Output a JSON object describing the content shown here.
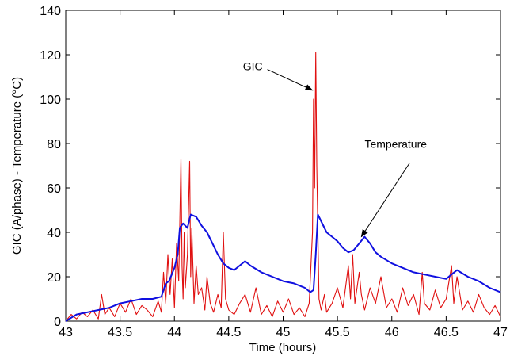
{
  "chart_data": {
    "type": "line",
    "xlabel": "Time (hours)",
    "ylabel": "GIC (A/phase) - Temperature (°C)",
    "xlim": [
      43,
      47
    ],
    "ylim": [
      0,
      140
    ],
    "xticks": [
      "43",
      "43.5",
      "44",
      "44.5",
      "45",
      "45.5",
      "46",
      "46.5",
      "47"
    ],
    "yticks": [
      "0",
      "20",
      "40",
      "60",
      "80",
      "100",
      "120",
      "140"
    ],
    "grid": false,
    "legend": "none",
    "series": [
      {
        "color": "#1010e0",
        "x": [
          43.0,
          43.1,
          43.2,
          43.3,
          43.4,
          43.5,
          43.6,
          43.7,
          43.8,
          43.88,
          43.92,
          43.95,
          44.0,
          44.03,
          44.05,
          44.08,
          44.12,
          44.15,
          44.2,
          44.25,
          44.3,
          44.35,
          44.4,
          44.45,
          44.5,
          44.55,
          44.6,
          44.65,
          44.7,
          44.8,
          44.9,
          45.0,
          45.1,
          45.2,
          45.25,
          45.28,
          45.3,
          45.32,
          45.35,
          45.4,
          45.45,
          45.5,
          45.55,
          45.6,
          45.65,
          45.7,
          45.75,
          45.8,
          45.85,
          45.9,
          46.0,
          46.1,
          46.2,
          46.3,
          46.4,
          46.5,
          46.55,
          46.6,
          46.7,
          46.8,
          46.9,
          47.0
        ],
        "y": [
          0,
          3,
          4,
          5,
          6,
          8,
          9,
          10,
          10,
          11,
          17,
          18,
          24,
          30,
          42,
          44,
          42,
          48,
          47,
          43,
          40,
          35,
          30,
          26,
          24,
          23,
          25,
          27,
          25,
          22,
          20,
          18,
          17,
          15,
          13,
          14,
          30,
          48,
          45,
          40,
          38,
          36,
          33,
          31,
          32,
          35,
          38,
          35,
          31,
          29,
          26,
          24,
          22,
          21,
          20,
          19,
          21,
          23,
          20,
          18,
          15,
          13
        ]
      },
      {
        "color": "#e01010",
        "x": [
          43.0,
          43.05,
          43.1,
          43.15,
          43.2,
          43.25,
          43.3,
          43.33,
          43.36,
          43.4,
          43.45,
          43.5,
          43.55,
          43.6,
          43.65,
          43.7,
          43.75,
          43.8,
          43.85,
          43.88,
          43.9,
          43.92,
          43.94,
          43.96,
          43.98,
          44.0,
          44.02,
          44.04,
          44.06,
          44.07,
          44.08,
          44.09,
          44.1,
          44.12,
          44.14,
          44.15,
          44.16,
          44.18,
          44.2,
          44.22,
          44.25,
          44.28,
          44.3,
          44.33,
          44.36,
          44.4,
          44.43,
          44.45,
          44.47,
          44.5,
          44.55,
          44.6,
          44.65,
          44.7,
          44.75,
          44.8,
          44.85,
          44.9,
          44.95,
          45.0,
          45.05,
          45.1,
          45.15,
          45.2,
          45.24,
          45.27,
          45.28,
          45.29,
          45.3,
          45.31,
          45.32,
          45.33,
          45.35,
          45.38,
          45.4,
          45.45,
          45.5,
          45.55,
          45.6,
          45.62,
          45.64,
          45.66,
          45.7,
          45.72,
          45.75,
          45.8,
          45.85,
          45.9,
          45.95,
          46.0,
          46.05,
          46.1,
          46.15,
          46.2,
          46.25,
          46.28,
          46.3,
          46.35,
          46.4,
          46.45,
          46.5,
          46.55,
          46.57,
          46.6,
          46.65,
          46.7,
          46.75,
          46.8,
          46.85,
          46.9,
          46.95,
          47.0
        ],
        "y": [
          0,
          3,
          1,
          4,
          2,
          5,
          1,
          12,
          3,
          6,
          2,
          8,
          4,
          10,
          3,
          7,
          5,
          2,
          9,
          4,
          22,
          8,
          30,
          12,
          28,
          6,
          35,
          18,
          73,
          25,
          10,
          40,
          15,
          30,
          72,
          20,
          42,
          8,
          25,
          12,
          15,
          5,
          20,
          8,
          4,
          12,
          6,
          40,
          10,
          5,
          3,
          8,
          12,
          4,
          15,
          3,
          7,
          2,
          9,
          4,
          10,
          3,
          6,
          2,
          8,
          40,
          100,
          60,
          121,
          70,
          40,
          10,
          5,
          12,
          4,
          8,
          15,
          6,
          25,
          10,
          30,
          8,
          22,
          12,
          5,
          15,
          8,
          20,
          6,
          10,
          4,
          15,
          7,
          12,
          3,
          22,
          8,
          5,
          14,
          6,
          10,
          25,
          8,
          20,
          5,
          9,
          4,
          12,
          6,
          3,
          7,
          2
        ]
      }
    ],
    "annotations": [
      {
        "text": "GIC",
        "x": 44.63,
        "y": 113,
        "arrow_to": [
          45.27,
          104
        ]
      },
      {
        "text": "Temperature",
        "x": 45.75,
        "y": 78,
        "arrow_to": [
          45.72,
          38
        ]
      }
    ]
  }
}
